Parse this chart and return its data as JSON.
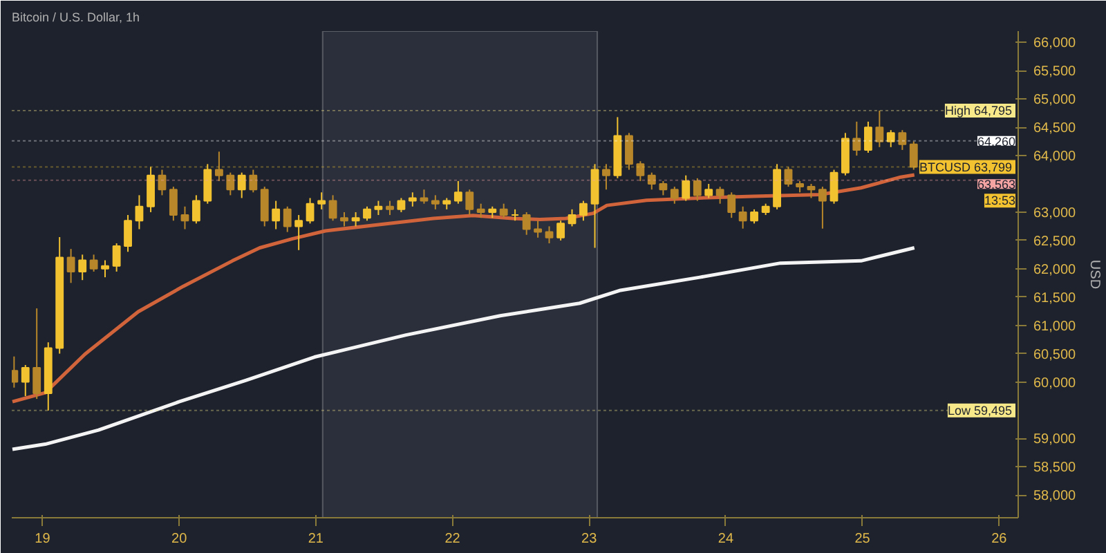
{
  "chart_data": {
    "type": "candlestick",
    "title": "Bitcoin / U.S. Dollar, 1h",
    "ylabel": "USD",
    "colors": [
      "#b8872a",
      "#f2c230",
      "#b8872a",
      "#f2c230",
      "#f2c230",
      "#b8872a",
      "#f2c230",
      "#b8872a",
      "#f2c230",
      "#f2c230",
      "#f2c230",
      "#f2c230",
      "#f2c230",
      "#b8872a",
      "#b8872a",
      "#b8872a",
      "#f2c230",
      "#f2c230",
      "#b8872a",
      "#b8872a",
      "#f2c230",
      "#b8872a",
      "#b8872a",
      "#f2c230",
      "#b8872a",
      "#f2c230",
      "#f2c230",
      "#f2c230",
      "#b8872a",
      "#b8872a",
      "#f2c230",
      "#f2c230",
      "#f2c230",
      "#b8872a",
      "#f2c230",
      "#f2c230",
      "#b8872a",
      "#b8872a",
      "#f2c230",
      "#f2c230",
      "#b8872a",
      "#b8872a",
      "#f2c230",
      "#b8872a",
      "#f2c230",
      "#b8872a",
      "#b8872a",
      "#b8872a",
      "#f2c230",
      "#f2c230",
      "#f2c230",
      "#f2c230",
      "#b8872a",
      "#f2c230",
      "#b8872a",
      "#b8872a",
      "#b8872a",
      "#b8872a",
      "#b8872a",
      "#f2c230",
      "#b8872a",
      "#f2c230",
      "#b8872a",
      "#b8872a",
      "#b8872a",
      "#f2c230",
      "#f2c230",
      "#f2c230",
      "#b8872a",
      "#b8872a",
      "#b8872a",
      "#b8872a",
      "#f2c230",
      "#f2c230",
      "#b8872a",
      "#f2c230",
      "#b8872a",
      "#f2c230",
      "#b8872a",
      "#b8872a"
    ],
    "x": [
      18.792,
      18.875,
      18.958,
      19.042,
      19.125,
      19.208,
      19.292,
      19.375,
      19.458,
      19.542,
      19.625,
      19.708,
      19.792,
      19.875,
      19.958,
      20.042,
      20.125,
      20.208,
      20.292,
      20.375,
      20.458,
      20.542,
      20.625,
      20.708,
      20.792,
      20.875,
      20.958,
      21.042,
      21.125,
      21.208,
      21.292,
      21.375,
      21.458,
      21.542,
      21.625,
      21.708,
      21.792,
      21.875,
      21.958,
      22.042,
      22.125,
      22.208,
      22.292,
      22.375,
      22.458,
      22.542,
      22.625,
      22.708,
      22.792,
      22.875,
      22.958,
      23.042,
      23.125,
      23.208,
      23.292,
      23.375,
      23.458,
      23.542,
      23.625,
      23.708,
      23.792,
      23.875,
      23.958,
      24.042,
      24.125,
      24.208,
      24.292,
      24.375,
      24.458,
      24.542,
      24.625,
      24.708,
      24.792,
      24.875,
      24.958,
      25.042,
      25.125,
      25.208,
      25.292,
      25.375
    ],
    "ohlc": [
      [
        60200,
        60450,
        59900,
        60000
      ],
      [
        60000,
        60300,
        59750,
        60250
      ],
      [
        60250,
        61300,
        59700,
        59800
      ],
      [
        59800,
        60700,
        59495,
        60600
      ],
      [
        60600,
        62560,
        60500,
        62200
      ],
      [
        62200,
        62350,
        61750,
        61950
      ],
      [
        61950,
        62250,
        61800,
        62150
      ],
      [
        62150,
        62250,
        61950,
        62000
      ],
      [
        62000,
        62150,
        61850,
        62050
      ],
      [
        62050,
        62450,
        61950,
        62400
      ],
      [
        62400,
        62950,
        62300,
        62850
      ],
      [
        62850,
        63300,
        62700,
        63100
      ],
      [
        63100,
        63800,
        63000,
        63650
      ],
      [
        63650,
        63750,
        63300,
        63400
      ],
      [
        63400,
        63450,
        62850,
        62950
      ],
      [
        62950,
        63100,
        62700,
        62850
      ],
      [
        62850,
        63300,
        62800,
        63200
      ],
      [
        63200,
        63850,
        63150,
        63750
      ],
      [
        63750,
        64070,
        63550,
        63650
      ],
      [
        63650,
        63700,
        63300,
        63400
      ],
      [
        63400,
        63700,
        63250,
        63650
      ],
      [
        63650,
        63750,
        63350,
        63400
      ],
      [
        63400,
        63450,
        62750,
        62850
      ],
      [
        62850,
        63200,
        62700,
        63050
      ],
      [
        63050,
        63100,
        62650,
        62750
      ],
      [
        62750,
        62950,
        62330,
        62850
      ],
      [
        62850,
        63250,
        62800,
        63150
      ],
      [
        63150,
        63350,
        63050,
        63200
      ],
      [
        63200,
        63300,
        62850,
        62900
      ],
      [
        62900,
        63000,
        62750,
        62850
      ],
      [
        62850,
        63000,
        62750,
        62900
      ],
      [
        62900,
        63100,
        62850,
        63050
      ],
      [
        63050,
        63200,
        62950,
        63100
      ],
      [
        63100,
        63200,
        62950,
        63050
      ],
      [
        63050,
        63250,
        63000,
        63200
      ],
      [
        63200,
        63350,
        63100,
        63250
      ],
      [
        63250,
        63400,
        63150,
        63200
      ],
      [
        63200,
        63300,
        63050,
        63150
      ],
      [
        63150,
        63250,
        63050,
        63200
      ],
      [
        63200,
        63550,
        63150,
        63350
      ],
      [
        63350,
        63400,
        62950,
        63050
      ],
      [
        63050,
        63150,
        62900,
        63000
      ],
      [
        63000,
        63100,
        62900,
        63050
      ],
      [
        63050,
        63150,
        62900,
        62950
      ],
      [
        62950,
        63050,
        62850,
        62950
      ],
      [
        62950,
        63000,
        62600,
        62700
      ],
      [
        62700,
        62850,
        62550,
        62650
      ],
      [
        62650,
        62750,
        62450,
        62550
      ],
      [
        62550,
        62850,
        62500,
        62800
      ],
      [
        62800,
        63050,
        62750,
        62950
      ],
      [
        62950,
        63200,
        62850,
        63150
      ],
      [
        63150,
        63850,
        62370,
        63750
      ],
      [
        63750,
        63850,
        63400,
        63650
      ],
      [
        63650,
        64680,
        63600,
        64350
      ],
      [
        64350,
        64400,
        63750,
        63850
      ],
      [
        63850,
        63900,
        63550,
        63650
      ],
      [
        63650,
        63700,
        63400,
        63500
      ],
      [
        63500,
        63550,
        63300,
        63400
      ],
      [
        63400,
        63450,
        63150,
        63250
      ],
      [
        63250,
        63650,
        63200,
        63550
      ],
      [
        63550,
        63600,
        63200,
        63300
      ],
      [
        63300,
        63500,
        63250,
        63400
      ],
      [
        63400,
        63450,
        63150,
        63300
      ],
      [
        63300,
        63350,
        62900,
        63000
      ],
      [
        63000,
        63100,
        62710,
        62850
      ],
      [
        62850,
        63050,
        62800,
        63000
      ],
      [
        63000,
        63150,
        62950,
        63100
      ],
      [
        63100,
        63850,
        63050,
        63750
      ],
      [
        63750,
        63800,
        63450,
        63500
      ],
      [
        63500,
        63550,
        63350,
        63450
      ],
      [
        63450,
        63500,
        63250,
        63400
      ],
      [
        63400,
        63450,
        62710,
        63200
      ],
      [
        63200,
        63750,
        63150,
        63700
      ],
      [
        63700,
        64400,
        63650,
        64300
      ],
      [
        64300,
        64600,
        64000,
        64100
      ],
      [
        64100,
        64600,
        64050,
        64500
      ],
      [
        64500,
        64795,
        64150,
        64250
      ],
      [
        64250,
        64450,
        64150,
        64400
      ],
      [
        64400,
        64450,
        64100,
        64200
      ],
      [
        64200,
        64250,
        63750,
        63799
      ]
    ],
    "series": [
      {
        "type": "line",
        "color": "#d2643c",
        "x": [
          18.78,
          19.02,
          19.31,
          19.7,
          20.03,
          20.39,
          20.59,
          20.83,
          21.07,
          21.46,
          21.86,
          22.15,
          22.44,
          22.64,
          22.83,
          23.03,
          23.13,
          23.42,
          23.81,
          24.2,
          24.69,
          24.99,
          25.28,
          25.38
        ],
        "values": [
          59650,
          59810,
          60490,
          61240,
          61690,
          62140,
          62370,
          62530,
          62670,
          62780,
          62890,
          62940,
          62890,
          62870,
          62890,
          62980,
          63120,
          63210,
          63250,
          63280,
          63310,
          63430,
          63620,
          63660
        ]
      },
      {
        "type": "line",
        "color": "#f4f4f4",
        "x": [
          18.78,
          19.02,
          19.41,
          20.0,
          20.49,
          20.99,
          21.66,
          22.35,
          22.64,
          22.93,
          23.23,
          23.81,
          24.4,
          24.99,
          25.38
        ],
        "values": [
          58810,
          58900,
          59150,
          59650,
          60030,
          60440,
          60830,
          61170,
          61280,
          61390,
          61620,
          61850,
          62100,
          62140,
          62370
        ]
      }
    ],
    "xlim": [
      18.775,
      26.14
    ],
    "xticks": [
      19,
      20,
      21,
      22,
      23,
      24,
      25,
      26
    ],
    "ylim": [
      57600,
      66200
    ],
    "yticks": [
      {
        "value": 58000,
        "label": "58,000"
      },
      {
        "value": 58500,
        "label": "58,500"
      },
      {
        "value": 59000,
        "label": "59,000"
      },
      {
        "value": 60000,
        "label": "60,000"
      },
      {
        "value": 60500,
        "label": "60,500"
      },
      {
        "value": 61000,
        "label": "61,000"
      },
      {
        "value": 61500,
        "label": "61,500"
      },
      {
        "value": 62000,
        "label": "62,000"
      },
      {
        "value": 62500,
        "label": "62,500"
      },
      {
        "value": 63000,
        "label": "63,000"
      },
      {
        "value": 64000,
        "label": "64,000"
      },
      {
        "value": 64500,
        "label": "64,500"
      },
      {
        "value": 65000,
        "label": "65,000"
      },
      {
        "value": 65500,
        "label": "65,500"
      },
      {
        "value": 66000,
        "label": "66,000"
      }
    ],
    "bands": [
      {
        "axis": "x",
        "from": 21.05,
        "to": 23.06,
        "color": "#2b2f3b"
      }
    ],
    "ref_lines": [
      {
        "axis": "y",
        "value": 64795,
        "label": "High  64,795",
        "color": "#f7e98a"
      },
      {
        "axis": "y",
        "value": 64260,
        "label": "64,260",
        "color": "#ffffff"
      },
      {
        "axis": "y",
        "value": 63799,
        "label": "BTCUSD  63,799",
        "color": "#f2c230"
      },
      {
        "axis": "y",
        "value": 63563,
        "label": "63,563",
        "color": "#f4a3a3"
      },
      {
        "axis": "y",
        "value": 59495,
        "label": "Low  59,495",
        "color": "#f7e98a"
      }
    ],
    "annotations": [
      {
        "text": "13:53",
        "x": 26.14,
        "y": 63540
      }
    ]
  }
}
